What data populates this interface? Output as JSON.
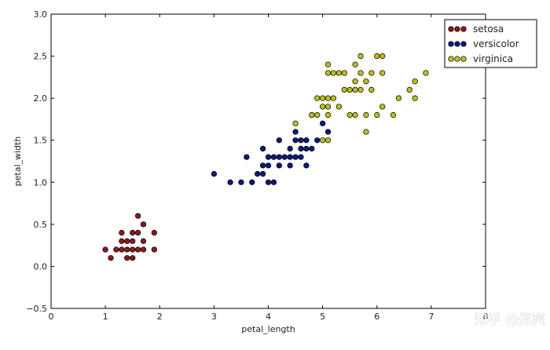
{
  "chart_data": {
    "type": "scatter",
    "title": "",
    "xlabel": "petal_length",
    "ylabel": "petal_width",
    "xlim": [
      0,
      8
    ],
    "ylim": [
      -0.5,
      3.0
    ],
    "xticks": [
      "0",
      "1",
      "2",
      "3",
      "4",
      "5",
      "6",
      "7",
      "8"
    ],
    "yticks": [
      "−0.5",
      "0.0",
      "0.5",
      "1.0",
      "1.5",
      "2.0",
      "2.5",
      "3.0"
    ],
    "grid": false,
    "legend_position": "top-right",
    "series": [
      {
        "name": "setosa",
        "color": "#8b1a1a",
        "points": [
          [
            1.0,
            0.2
          ],
          [
            1.1,
            0.1
          ],
          [
            1.2,
            0.2
          ],
          [
            1.3,
            0.2
          ],
          [
            1.3,
            0.3
          ],
          [
            1.3,
            0.4
          ],
          [
            1.4,
            0.1
          ],
          [
            1.4,
            0.2
          ],
          [
            1.4,
            0.3
          ],
          [
            1.5,
            0.1
          ],
          [
            1.5,
            0.2
          ],
          [
            1.5,
            0.3
          ],
          [
            1.5,
            0.4
          ],
          [
            1.6,
            0.2
          ],
          [
            1.6,
            0.4
          ],
          [
            1.6,
            0.6
          ],
          [
            1.7,
            0.2
          ],
          [
            1.7,
            0.3
          ],
          [
            1.7,
            0.5
          ],
          [
            1.9,
            0.2
          ],
          [
            1.9,
            0.4
          ]
        ]
      },
      {
        "name": "versicolor",
        "color": "#0a1a7a",
        "points": [
          [
            3.0,
            1.1
          ],
          [
            3.3,
            1.0
          ],
          [
            3.5,
            1.0
          ],
          [
            3.6,
            1.3
          ],
          [
            3.7,
            1.0
          ],
          [
            3.8,
            1.1
          ],
          [
            3.9,
            1.1
          ],
          [
            3.9,
            1.2
          ],
          [
            3.9,
            1.4
          ],
          [
            4.0,
            1.0
          ],
          [
            4.0,
            1.2
          ],
          [
            4.0,
            1.3
          ],
          [
            4.1,
            1.0
          ],
          [
            4.1,
            1.3
          ],
          [
            4.2,
            1.2
          ],
          [
            4.2,
            1.3
          ],
          [
            4.2,
            1.5
          ],
          [
            4.3,
            1.3
          ],
          [
            4.4,
            1.2
          ],
          [
            4.4,
            1.3
          ],
          [
            4.4,
            1.4
          ],
          [
            4.5,
            1.3
          ],
          [
            4.5,
            1.5
          ],
          [
            4.5,
            1.6
          ],
          [
            4.6,
            1.3
          ],
          [
            4.6,
            1.4
          ],
          [
            4.6,
            1.5
          ],
          [
            4.7,
            1.2
          ],
          [
            4.7,
            1.4
          ],
          [
            4.7,
            1.5
          ],
          [
            4.8,
            1.4
          ],
          [
            4.8,
            1.8
          ],
          [
            4.9,
            1.5
          ],
          [
            5.0,
            1.7
          ],
          [
            5.1,
            1.6
          ]
        ]
      },
      {
        "name": "virginica",
        "color": "#bdbd1e",
        "points": [
          [
            4.5,
            1.7
          ],
          [
            4.8,
            1.8
          ],
          [
            4.9,
            1.8
          ],
          [
            4.9,
            2.0
          ],
          [
            5.0,
            1.5
          ],
          [
            5.0,
            1.9
          ],
          [
            5.0,
            2.0
          ],
          [
            5.1,
            1.5
          ],
          [
            5.1,
            1.8
          ],
          [
            5.1,
            1.9
          ],
          [
            5.1,
            2.0
          ],
          [
            5.1,
            2.3
          ],
          [
            5.1,
            2.4
          ],
          [
            5.2,
            2.0
          ],
          [
            5.2,
            2.3
          ],
          [
            5.3,
            1.9
          ],
          [
            5.3,
            2.3
          ],
          [
            5.4,
            2.1
          ],
          [
            5.4,
            2.3
          ],
          [
            5.5,
            1.8
          ],
          [
            5.5,
            2.1
          ],
          [
            5.6,
            1.8
          ],
          [
            5.6,
            2.1
          ],
          [
            5.6,
            2.2
          ],
          [
            5.6,
            2.4
          ],
          [
            5.7,
            2.1
          ],
          [
            5.7,
            2.3
          ],
          [
            5.7,
            2.5
          ],
          [
            5.8,
            1.6
          ],
          [
            5.8,
            1.8
          ],
          [
            5.8,
            2.2
          ],
          [
            5.9,
            2.1
          ],
          [
            5.9,
            2.3
          ],
          [
            6.0,
            1.8
          ],
          [
            6.0,
            2.5
          ],
          [
            6.1,
            1.9
          ],
          [
            6.1,
            2.3
          ],
          [
            6.1,
            2.5
          ],
          [
            6.3,
            1.8
          ],
          [
            6.4,
            2.0
          ],
          [
            6.6,
            2.1
          ],
          [
            6.7,
            2.0
          ],
          [
            6.7,
            2.2
          ],
          [
            6.9,
            2.3
          ]
        ]
      }
    ]
  },
  "watermark": "知乎 @郑爽"
}
